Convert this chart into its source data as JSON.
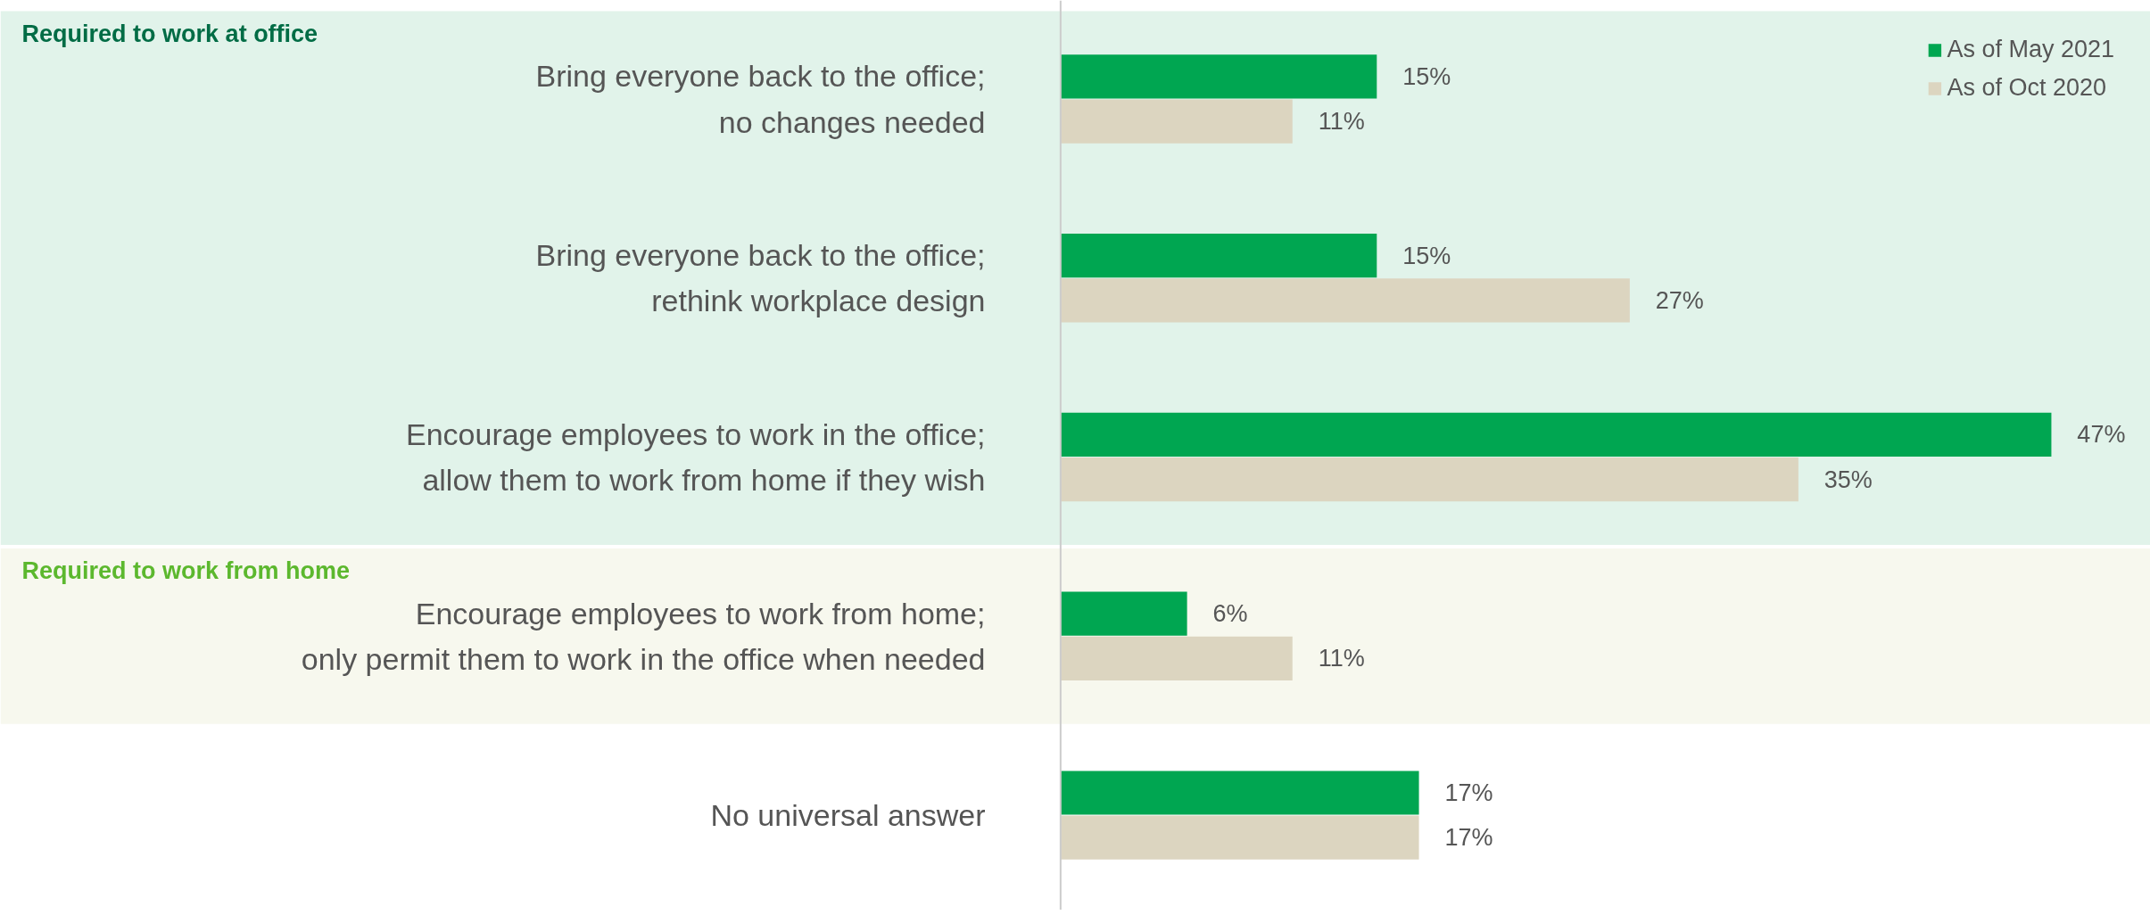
{
  "chart_data": {
    "type": "bar",
    "orientation": "horizontal",
    "categories": [
      "Bring everyone back to the office;\nno changes needed",
      "Bring everyone back to the office;\nrethink workplace design",
      "Encourage employees to work in the office;\nallow them to work from home if they wish",
      "Encourage employees to work from home;\nonly permit them to work in the office when needed",
      "No universal answer"
    ],
    "series": [
      {
        "name": "As of May 2021",
        "color": "#00a651",
        "values": [
          15,
          15,
          47,
          6,
          17
        ],
        "value_labels": [
          "15%",
          "15%",
          "47%",
          "6%",
          "17%"
        ]
      },
      {
        "name": "As of Oct 2020",
        "color": "#dcd5c0",
        "values": [
          11,
          27,
          35,
          11,
          17
        ],
        "value_labels": [
          "11%",
          "27%",
          "35%",
          "11%",
          "17%"
        ]
      }
    ],
    "bands": [
      {
        "axis": "y",
        "from": "Bring everyone back to the office;\nno changes needed",
        "to": "Encourage employees to work in the office;\nallow them to work from home if they wish",
        "label": "Required to work at office",
        "color": "#e1f3ea"
      },
      {
        "axis": "y",
        "from": "Encourage employees to work from home;\nonly permit them to work in the office when needed",
        "to": "Encourage employees to work from home;\nonly permit them to work in the office when needed",
        "label": "Required to work from home",
        "color": "#f7f8ee"
      }
    ],
    "legend": "top right",
    "grid": false
  }
}
